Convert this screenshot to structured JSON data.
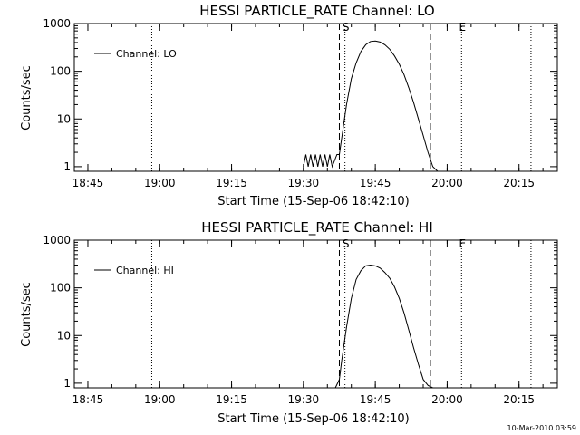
{
  "footer_stamp": "10-Mar-2010 03:59",
  "chart_data": [
    {
      "type": "line",
      "title": "HESSI PARTICLE_RATE Channel: LO",
      "xlabel": "Start Time (15-Sep-06 18:42:10)",
      "ylabel": "Counts/sec",
      "xlim": [
        "18:42:10",
        "20:23:00"
      ],
      "ylim": [
        0.8,
        1000
      ],
      "y_scale": "log",
      "x_tick_labels": [
        "18:45",
        "19:00",
        "19:15",
        "19:30",
        "19:45",
        "20:00",
        "20:15"
      ],
      "y_tick_labels": [
        "1",
        "10",
        "100",
        "1000"
      ],
      "legend": {
        "position": "top-left",
        "entries": [
          "Channel: LO"
        ]
      },
      "markers": [
        {
          "label": "S",
          "time": "19:38:40",
          "style": "dotted"
        },
        {
          "label": "E",
          "time": "20:03:00",
          "style": "dotted"
        }
      ],
      "dashed_lines": [
        {
          "time": "19:37:30"
        },
        {
          "time": "19:56:30"
        }
      ],
      "extra_dotted_lines": [
        {
          "time": "18:58:20"
        },
        {
          "time": "20:17:30"
        }
      ],
      "series": [
        {
          "name": "Channel: LO",
          "x": [
            "19:30:00",
            "19:30:30",
            "19:31:00",
            "19:31:30",
            "19:32:00",
            "19:32:30",
            "19:33:00",
            "19:33:30",
            "19:34:00",
            "19:34:30",
            "19:35:00",
            "19:35:30",
            "19:36:00",
            "19:37:00",
            "19:37:30",
            "19:38:00",
            "19:39:00",
            "19:40:00",
            "19:41:00",
            "19:42:00",
            "19:43:00",
            "19:44:00",
            "19:45:00",
            "19:46:00",
            "19:47:00",
            "19:48:00",
            "19:49:00",
            "19:50:00",
            "19:51:00",
            "19:52:00",
            "19:53:00",
            "19:54:00",
            "19:55:00",
            "19:56:00",
            "19:57:00",
            "19:58:00"
          ],
          "y": [
            1,
            1.8,
            1,
            1.8,
            1,
            1.8,
            1,
            1.8,
            1,
            1.8,
            1,
            1.8,
            1,
            1.8,
            1.8,
            4,
            20,
            70,
            150,
            260,
            360,
            420,
            430,
            410,
            360,
            290,
            210,
            140,
            85,
            45,
            22,
            10,
            4.5,
            2,
            1,
            0.8
          ]
        }
      ]
    },
    {
      "type": "line",
      "title": "HESSI PARTICLE_RATE Channel: HI",
      "xlabel": "Start Time (15-Sep-06 18:42:10)",
      "ylabel": "Counts/sec",
      "xlim": [
        "18:42:10",
        "20:23:00"
      ],
      "ylim": [
        0.8,
        1000
      ],
      "y_scale": "log",
      "x_tick_labels": [
        "18:45",
        "19:00",
        "19:15",
        "19:30",
        "19:45",
        "20:00",
        "20:15"
      ],
      "y_tick_labels": [
        "1",
        "10",
        "100",
        "1000"
      ],
      "legend": {
        "position": "top-left",
        "entries": [
          "Channel: HI"
        ]
      },
      "markers": [
        {
          "label": "S",
          "time": "19:38:40",
          "style": "dotted"
        },
        {
          "label": "E",
          "time": "20:03:00",
          "style": "dotted"
        }
      ],
      "dashed_lines": [
        {
          "time": "19:37:30"
        },
        {
          "time": "19:56:30"
        }
      ],
      "extra_dotted_lines": [
        {
          "time": "18:58:20"
        },
        {
          "time": "20:17:30"
        }
      ],
      "series": [
        {
          "name": "Channel: HI",
          "x": [
            "19:36:40",
            "19:37:30",
            "19:38:00",
            "19:39:00",
            "19:40:00",
            "19:41:00",
            "19:42:00",
            "19:43:00",
            "19:44:00",
            "19:45:00",
            "19:46:00",
            "19:47:00",
            "19:48:00",
            "19:49:00",
            "19:50:00",
            "19:51:00",
            "19:52:00",
            "19:53:00",
            "19:54:00",
            "19:55:00",
            "19:56:00",
            "19:57:00"
          ],
          "y": [
            0.8,
            1.2,
            3,
            15,
            60,
            150,
            230,
            290,
            300,
            290,
            260,
            210,
            160,
            105,
            60,
            30,
            13,
            5.5,
            2.5,
            1.2,
            0.9,
            0.8
          ]
        }
      ]
    }
  ]
}
